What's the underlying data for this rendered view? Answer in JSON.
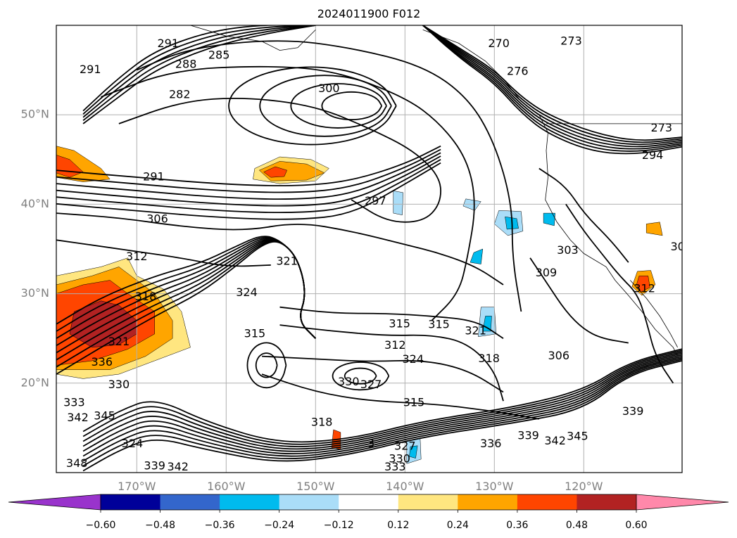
{
  "chart_data": {
    "type": "contour",
    "title": "2024011900 F012",
    "map": {
      "lon_range": [
        -179,
        -109
      ],
      "lat_range": [
        10,
        60
      ],
      "lon_ticks": [
        -170,
        -160,
        -150,
        -140,
        -130,
        -120
      ],
      "lon_tick_labels": [
        "170°W",
        "160°W",
        "150°W",
        "140°W",
        "130°W",
        "120°W"
      ],
      "lat_ticks": [
        20,
        30,
        40,
        50
      ],
      "lat_tick_labels": [
        "20°N",
        "30°N",
        "40°N",
        "50°N"
      ],
      "grid": true
    },
    "colorbar": {
      "extend": "both",
      "orientation": "horizontal",
      "boundaries": [
        -0.6,
        -0.48,
        -0.36,
        -0.24,
        -0.12,
        0.12,
        0.24,
        0.36,
        0.48,
        0.6
      ],
      "tick_labels": [
        "−0.60",
        "−0.48",
        "−0.36",
        "−0.24",
        "−0.12",
        "0.12",
        "0.24",
        "0.36",
        "0.48",
        "0.60"
      ],
      "colors": [
        "#9933cc",
        "#000099",
        "#3366cc",
        "#00bbee",
        "#aaddf8",
        "#ffffff",
        "#ffe680",
        "#ffa500",
        "#ff4500",
        "#b22222",
        "#ff88aa"
      ]
    },
    "contour_labels": [
      {
        "text": "291",
        "lon": -175.2,
        "lat": 55.0
      },
      {
        "text": "291",
        "lon": -166.5,
        "lat": 57.9
      },
      {
        "text": "288",
        "lon": -164.5,
        "lat": 55.6
      },
      {
        "text": "285",
        "lon": -160.8,
        "lat": 56.6
      },
      {
        "text": "282",
        "lon": -165.2,
        "lat": 52.2
      },
      {
        "text": "300",
        "lon": -148.5,
        "lat": 52.9
      },
      {
        "text": "270",
        "lon": -129.5,
        "lat": 57.9
      },
      {
        "text": "273",
        "lon": -121.4,
        "lat": 58.2
      },
      {
        "text": "273",
        "lon": -111.3,
        "lat": 48.5
      },
      {
        "text": "294",
        "lon": -112.3,
        "lat": 45.4
      },
      {
        "text": "291",
        "lon": -168.1,
        "lat": 43.0
      },
      {
        "text": "297",
        "lon": -143.3,
        "lat": 40.3
      },
      {
        "text": "306",
        "lon": -167.7,
        "lat": 38.3
      },
      {
        "text": "312",
        "lon": -170.0,
        "lat": 34.1
      },
      {
        "text": "321",
        "lon": -153.2,
        "lat": 33.6
      },
      {
        "text": "303",
        "lon": -121.8,
        "lat": 34.8
      },
      {
        "text": "30",
        "lon": -109.5,
        "lat": 35.2
      },
      {
        "text": "309",
        "lon": -124.2,
        "lat": 32.3
      },
      {
        "text": "318",
        "lon": -169.0,
        "lat": 29.6
      },
      {
        "text": "324",
        "lon": -157.7,
        "lat": 30.1
      },
      {
        "text": "315",
        "lon": -156.8,
        "lat": 25.5
      },
      {
        "text": "315",
        "lon": -140.6,
        "lat": 26.6
      },
      {
        "text": "315",
        "lon": -136.2,
        "lat": 26.5
      },
      {
        "text": "321",
        "lon": -132.1,
        "lat": 25.8
      },
      {
        "text": "312",
        "lon": -141.1,
        "lat": 24.2
      },
      {
        "text": "321",
        "lon": -172.0,
        "lat": 24.6
      },
      {
        "text": "336",
        "lon": -173.9,
        "lat": 22.3
      },
      {
        "text": "324",
        "lon": -139.1,
        "lat": 22.6
      },
      {
        "text": "318",
        "lon": -130.6,
        "lat": 22.7
      },
      {
        "text": "306",
        "lon": -122.8,
        "lat": 23.0
      },
      {
        "text": "330",
        "lon": -172.0,
        "lat": 19.8
      },
      {
        "text": "330",
        "lon": -146.3,
        "lat": 20.1
      },
      {
        "text": "327",
        "lon": -143.8,
        "lat": 19.8
      },
      {
        "text": "315",
        "lon": -139.0,
        "lat": 17.8
      },
      {
        "text": "333",
        "lon": -177.0,
        "lat": 17.8
      },
      {
        "text": "345",
        "lon": -173.6,
        "lat": 16.3
      },
      {
        "text": "342",
        "lon": -176.6,
        "lat": 16.1
      },
      {
        "text": "339",
        "lon": -114.5,
        "lat": 16.8
      },
      {
        "text": "318",
        "lon": -149.3,
        "lat": 15.6
      },
      {
        "text": "324",
        "lon": -170.5,
        "lat": 13.2
      },
      {
        "text": "327",
        "lon": -140.0,
        "lat": 12.9
      },
      {
        "text": "336",
        "lon": -130.4,
        "lat": 13.2
      },
      {
        "text": "339",
        "lon": -126.2,
        "lat": 14.1
      },
      {
        "text": "342",
        "lon": -123.2,
        "lat": 13.5
      },
      {
        "text": "345",
        "lon": -120.7,
        "lat": 14.0
      },
      {
        "text": "330",
        "lon": -140.6,
        "lat": 11.5
      },
      {
        "text": "333",
        "lon": -141.1,
        "lat": 10.6
      },
      {
        "text": "339",
        "lon": -168.0,
        "lat": 10.7
      },
      {
        "text": "342",
        "lon": -165.4,
        "lat": 10.6
      },
      {
        "text": "348",
        "lon": -176.7,
        "lat": 11.0
      },
      {
        "text": "312",
        "lon": -113.2,
        "lat": 30.5
      },
      {
        "text": "276",
        "lon": -127.4,
        "lat": 54.8
      },
      {
        "text": "3",
        "lon": -143.8,
        "lat": 13.2
      }
    ],
    "shaded_regions": [
      {
        "level": "0.24",
        "lon": -175.5,
        "lat": 44.5
      },
      {
        "level": "0.36",
        "lon": -152.5,
        "lat": 43.7
      },
      {
        "level": "0.48",
        "lon": -172.5,
        "lat": 26.0
      },
      {
        "level": "0.36",
        "lon": -113.0,
        "lat": 31.3
      },
      {
        "level": "0.36",
        "lon": -147.7,
        "lat": 13.8
      },
      {
        "level": "-0.36",
        "lon": -128.2,
        "lat": 37.7
      },
      {
        "level": "-0.36",
        "lon": -130.8,
        "lat": 26.3
      },
      {
        "level": "-0.36",
        "lon": -139.0,
        "lat": 12.3
      }
    ]
  }
}
